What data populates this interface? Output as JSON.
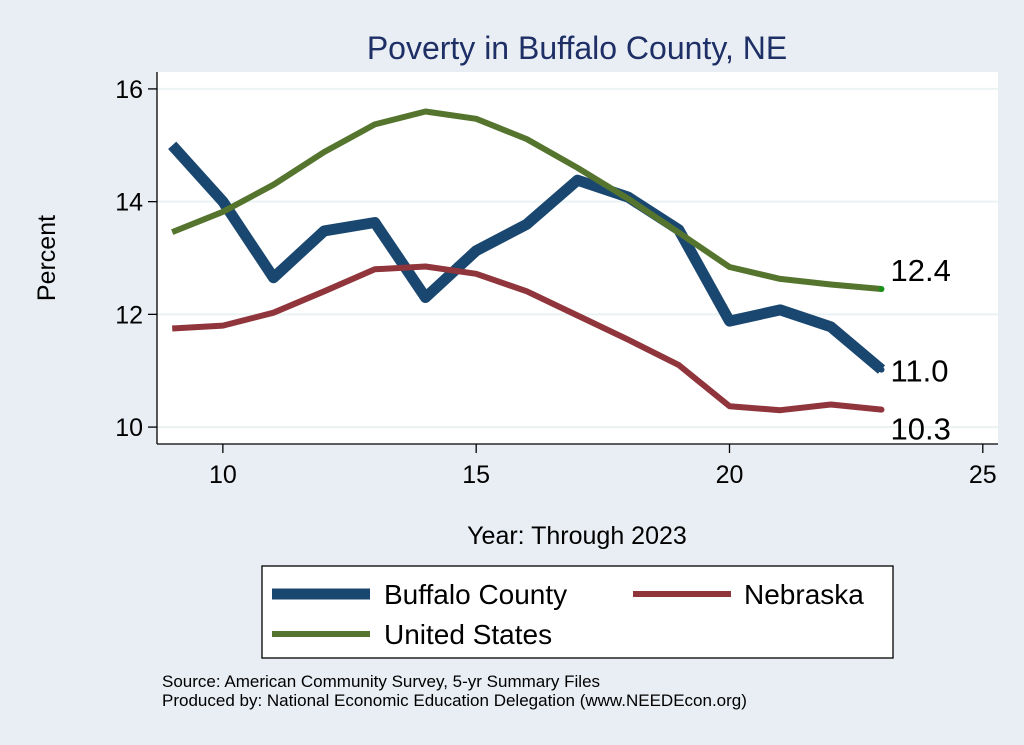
{
  "chart_data": {
    "type": "line",
    "title": "Poverty in Buffalo County, NE",
    "xlabel": "Year: Through 2023",
    "ylabel": "Percent",
    "xlim": [
      8.7,
      25.3
    ],
    "ylim": [
      9.7,
      16.3
    ],
    "xticks": [
      10,
      15,
      20,
      25
    ],
    "yticks": [
      10,
      12,
      14,
      16
    ],
    "grid": true,
    "legend_position": "bottom",
    "x": [
      9,
      10,
      11,
      12,
      13,
      14,
      15,
      16,
      17,
      18,
      19,
      20,
      21,
      22,
      23
    ],
    "series": [
      {
        "name": "Buffalo County",
        "color": "#1a476f",
        "weight": "thick",
        "values": [
          15.0,
          14.0,
          12.65,
          13.48,
          13.63,
          12.3,
          13.13,
          13.6,
          14.38,
          14.08,
          13.5,
          11.88,
          12.08,
          11.78,
          11.02
        ],
        "end_label": "11.0"
      },
      {
        "name": "Nebraska",
        "color": "#90353b",
        "weight": "medium",
        "values": [
          11.75,
          11.8,
          12.03,
          12.41,
          12.8,
          12.85,
          12.72,
          12.41,
          11.98,
          11.55,
          11.1,
          10.37,
          10.3,
          10.4,
          10.31
        ],
        "end_label": "10.3"
      },
      {
        "name": "United States",
        "color": "#55752f",
        "weight": "medium",
        "values": [
          13.46,
          13.82,
          14.3,
          14.88,
          15.37,
          15.6,
          15.47,
          15.11,
          14.6,
          14.05,
          13.45,
          12.84,
          12.63,
          12.53,
          12.45
        ],
        "end_label": "12.4"
      }
    ]
  },
  "footer": {
    "source": "Source: American Community Survey, 5-yr Summary Files",
    "produced_by": "Produced by: National Economic Education Delegation (www.NEEDEcon.org)"
  }
}
